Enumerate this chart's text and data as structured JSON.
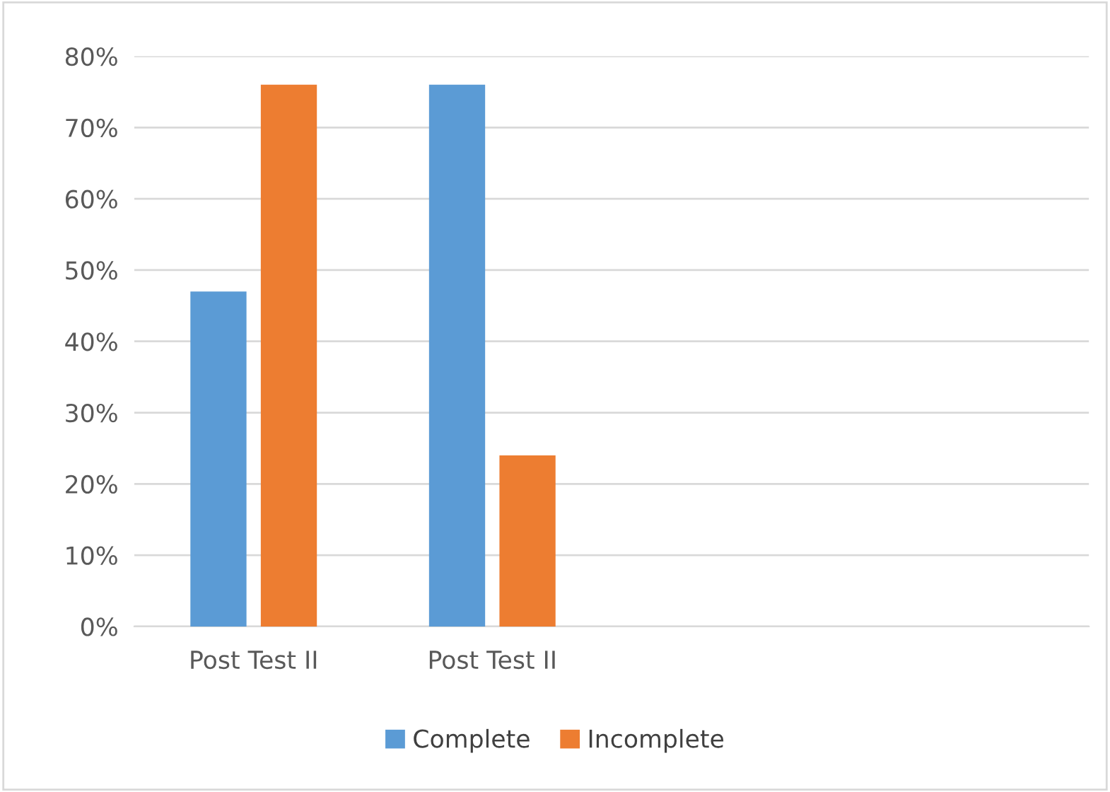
{
  "chart_data": {
    "type": "bar",
    "categories": [
      "Post Test II",
      "Post Test II",
      null,
      null
    ],
    "series": [
      {
        "name": "Complete",
        "color": "#5b9bd5",
        "values": [
          47,
          76,
          null,
          null
        ]
      },
      {
        "name": "Incomplete",
        "color": "#ed7d31",
        "values": [
          76,
          24,
          null,
          null
        ]
      }
    ],
    "ylim": [
      0,
      80
    ],
    "yticks": [
      {
        "value": 0,
        "label": "0%"
      },
      {
        "value": 10,
        "label": "10%"
      },
      {
        "value": 20,
        "label": "20%"
      },
      {
        "value": 30,
        "label": "30%"
      },
      {
        "value": 40,
        "label": "40%"
      },
      {
        "value": 50,
        "label": "50%"
      },
      {
        "value": 60,
        "label": "60%"
      },
      {
        "value": 70,
        "label": "70%"
      },
      {
        "value": 80,
        "label": "80%"
      }
    ],
    "grid": "y",
    "legend": "bottom"
  }
}
